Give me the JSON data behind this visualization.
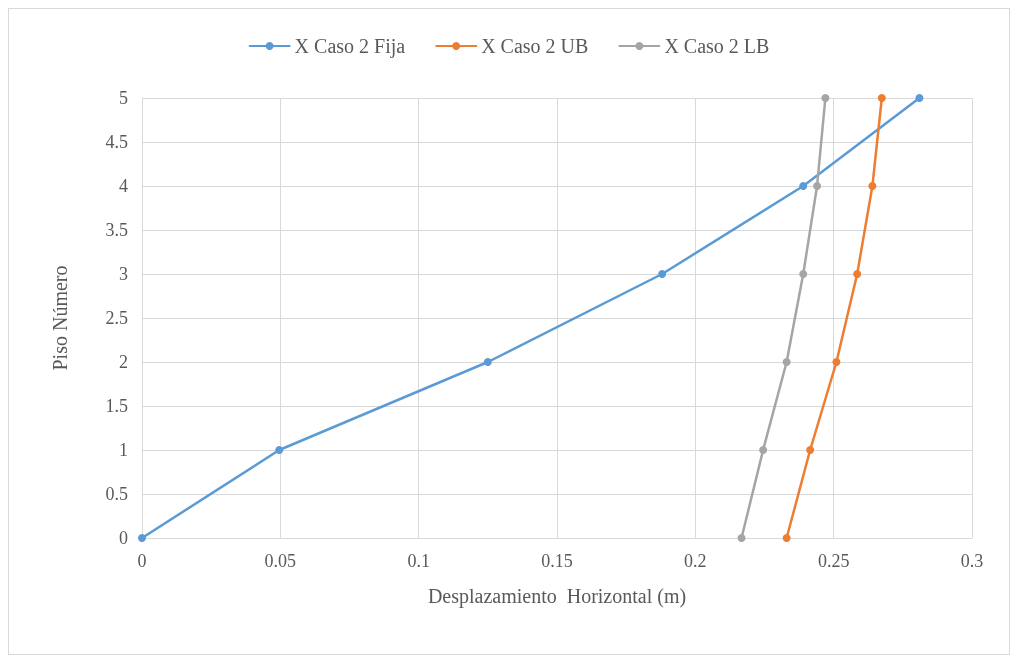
{
  "chart_data": {
    "type": "line",
    "xlabel": "Desplazamiento  Horizontal (m)",
    "ylabel": "Piso Número",
    "xlim": [
      0,
      0.3
    ],
    "xticks": [
      0,
      0.05,
      0.1,
      0.15,
      0.2,
      0.25,
      0.3
    ],
    "ylim": [
      0,
      5
    ],
    "yticks": [
      0,
      0.5,
      1,
      1.5,
      2,
      2.5,
      3,
      3.5,
      4,
      4.5,
      5
    ],
    "grid": true,
    "legend": "top",
    "marker": "circle",
    "line_style": "solid",
    "series": [
      {
        "name": "X Caso 2 Fija",
        "color": "#5b9bd5",
        "x": [
          0,
          0.0496,
          0.125,
          0.188,
          0.239,
          0.281
        ],
        "values": [
          0,
          1,
          2,
          3,
          4,
          5
        ]
      },
      {
        "name": "X Caso 2 UB",
        "color": "#ed7d31",
        "x": [
          0.233,
          0.2415,
          0.251,
          0.2585,
          0.264,
          0.2674
        ],
        "values": [
          0,
          1,
          2,
          3,
          4,
          5
        ]
      },
      {
        "name": "X Caso 2 LB",
        "color": "#a5a5a5",
        "x": [
          0.2167,
          0.2245,
          0.233,
          0.239,
          0.244,
          0.247
        ],
        "values": [
          0,
          1,
          2,
          3,
          4,
          5
        ]
      }
    ]
  }
}
